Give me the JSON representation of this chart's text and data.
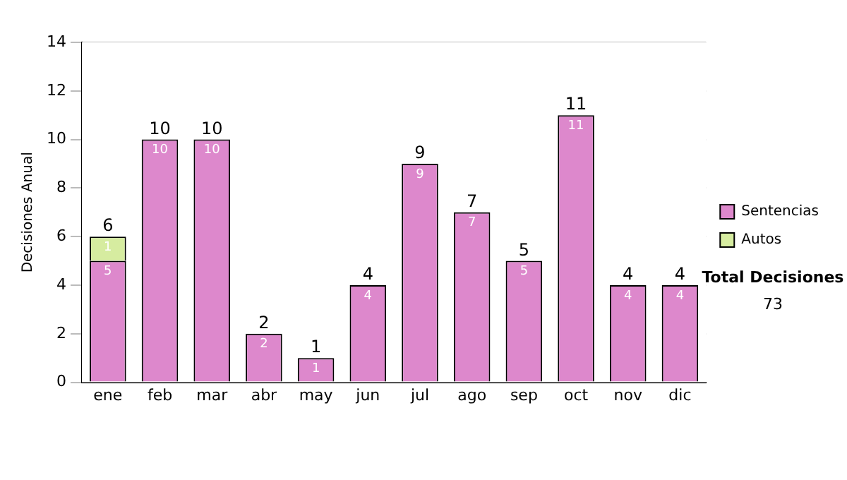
{
  "chart_data": {
    "type": "bar",
    "stacked": true,
    "ylabel": "Decisiones Anual",
    "categories": [
      "ene",
      "feb",
      "mar",
      "abr",
      "may",
      "jun",
      "jul",
      "ago",
      "sep",
      "oct",
      "nov",
      "dic"
    ],
    "series": [
      {
        "name": "Sentencias",
        "color": "#dd88cc",
        "values": [
          5,
          10,
          10,
          2,
          1,
          4,
          9,
          7,
          5,
          11,
          4,
          4
        ]
      },
      {
        "name": "Autos",
        "color": "#d6eca0",
        "values": [
          1,
          null,
          null,
          null,
          null,
          null,
          null,
          null,
          null,
          null,
          null,
          null
        ]
      }
    ],
    "totals": [
      "6",
      "10",
      "10",
      "2",
      "1",
      "4",
      "9",
      "7",
      "5",
      "11",
      "4",
      "4"
    ],
    "data_labels": true,
    "ylim": [
      0,
      14
    ],
    "yticks": [
      0,
      2,
      4,
      6,
      8,
      10,
      12,
      14
    ],
    "grid": "y",
    "legend": "right",
    "annotations": [
      "Total Decisiones",
      "73"
    ]
  }
}
